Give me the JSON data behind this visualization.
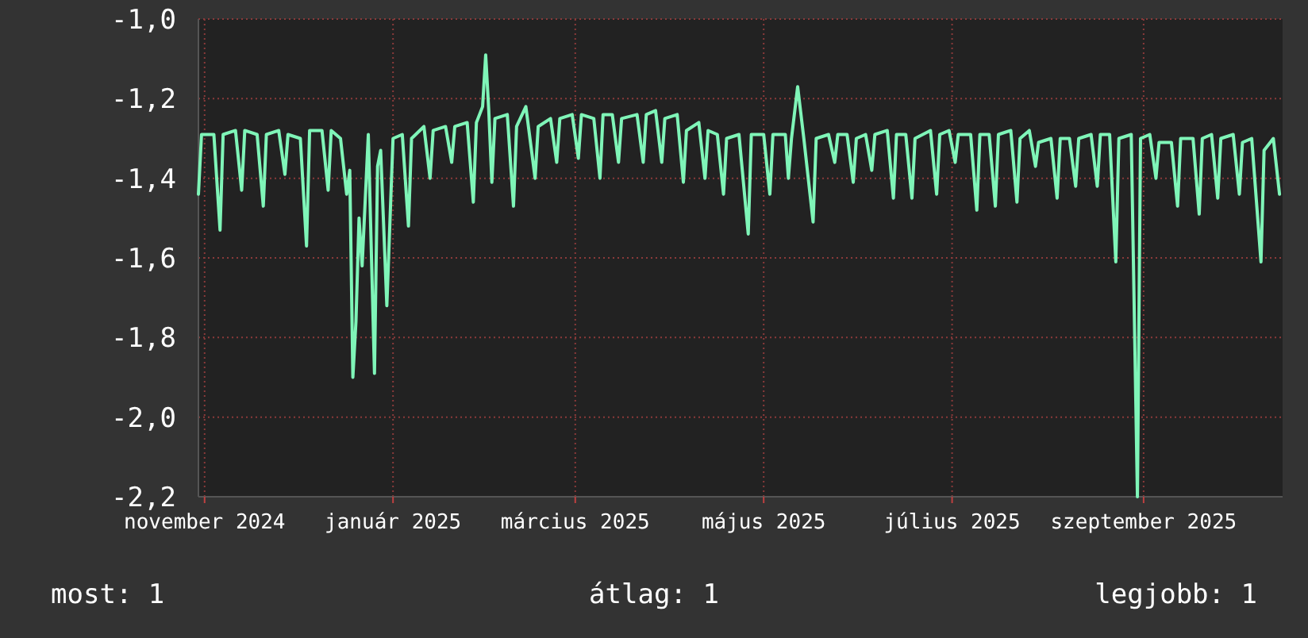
{
  "chart_data": {
    "type": "line",
    "grid": true,
    "xlim": [
      "2024-10-30",
      "2025-10-16"
    ],
    "xticks": [
      {
        "value": "2024-11-01",
        "label": "november 2024"
      },
      {
        "value": "2025-01-01",
        "label": "január 2025"
      },
      {
        "value": "2025-03-01",
        "label": "március 2025"
      },
      {
        "value": "2025-05-01",
        "label": "május 2025"
      },
      {
        "value": "2025-07-01",
        "label": "július 2025"
      },
      {
        "value": "2025-09-01",
        "label": "szeptember 2025"
      }
    ],
    "ylim": [
      -2.2,
      -1.0
    ],
    "yticks": [
      {
        "value": -1.0,
        "label": "-1,0"
      },
      {
        "value": -1.2,
        "label": "-1,2"
      },
      {
        "value": -1.4,
        "label": "-1,4"
      },
      {
        "value": -1.6,
        "label": "-1,6"
      },
      {
        "value": -1.8,
        "label": "-1,8"
      },
      {
        "value": -2.0,
        "label": "-2,0"
      },
      {
        "value": -2.2,
        "label": "-2,2"
      }
    ],
    "annotations": [
      "most: 1",
      "átlag: 1",
      "legjobb: 1"
    ],
    "x": [
      "2024-10-30",
      "2024-10-31",
      "2024-11-04",
      "2024-11-06",
      "2024-11-07",
      "2024-11-11",
      "2024-11-13",
      "2024-11-14",
      "2024-11-18",
      "2024-11-20",
      "2024-11-21",
      "2024-11-25",
      "2024-11-27",
      "2024-11-28",
      "2024-12-02",
      "2024-12-04",
      "2024-12-05",
      "2024-12-09",
      "2024-12-11",
      "2024-12-12",
      "2024-12-15",
      "2024-12-17",
      "2024-12-18",
      "2024-12-19",
      "2024-12-20",
      "2024-12-21",
      "2024-12-22",
      "2024-12-24",
      "2024-12-26",
      "2024-12-27",
      "2024-12-28",
      "2024-12-30",
      "2025-01-01",
      "2025-01-04",
      "2025-01-06",
      "2025-01-07",
      "2025-01-11",
      "2025-01-13",
      "2025-01-14",
      "2025-01-18",
      "2025-01-20",
      "2025-01-21",
      "2025-01-25",
      "2025-01-27",
      "2025-01-28",
      "2025-01-30",
      "2025-01-31",
      "2025-02-01",
      "2025-02-02",
      "2025-02-03",
      "2025-02-07",
      "2025-02-09",
      "2025-02-10",
      "2025-02-13",
      "2025-02-16",
      "2025-02-17",
      "2025-02-21",
      "2025-02-23",
      "2025-02-24",
      "2025-02-28",
      "2025-03-02",
      "2025-03-03",
      "2025-03-07",
      "2025-03-09",
      "2025-03-10",
      "2025-03-13",
      "2025-03-15",
      "2025-03-16",
      "2025-03-21",
      "2025-03-23",
      "2025-03-24",
      "2025-03-27",
      "2025-03-29",
      "2025-03-30",
      "2025-04-03",
      "2025-04-05",
      "2025-04-06",
      "2025-04-10",
      "2025-04-12",
      "2025-04-13",
      "2025-04-16",
      "2025-04-18",
      "2025-04-19",
      "2025-04-23",
      "2025-04-26",
      "2025-04-27",
      "2025-05-01",
      "2025-05-03",
      "2025-05-04",
      "2025-05-08",
      "2025-05-09",
      "2025-05-10",
      "2025-05-12",
      "2025-05-14",
      "2025-05-17",
      "2025-05-18",
      "2025-05-22",
      "2025-05-24",
      "2025-05-25",
      "2025-05-28",
      "2025-05-30",
      "2025-05-31",
      "2025-06-03",
      "2025-06-05",
      "2025-06-06",
      "2025-06-10",
      "2025-06-12",
      "2025-06-13",
      "2025-06-16",
      "2025-06-18",
      "2025-06-19",
      "2025-06-24",
      "2025-06-26",
      "2025-06-27",
      "2025-06-30",
      "2025-07-02",
      "2025-07-03",
      "2025-07-07",
      "2025-07-09",
      "2025-07-10",
      "2025-07-13",
      "2025-07-15",
      "2025-07-16",
      "2025-07-20",
      "2025-07-22",
      "2025-07-23",
      "2025-07-26",
      "2025-07-28",
      "2025-07-29",
      "2025-08-02",
      "2025-08-04",
      "2025-08-05",
      "2025-08-08",
      "2025-08-10",
      "2025-08-11",
      "2025-08-15",
      "2025-08-17",
      "2025-08-18",
      "2025-08-21",
      "2025-08-23",
      "2025-08-24",
      "2025-08-28",
      "2025-08-30",
      "2025-08-31",
      "2025-09-03",
      "2025-09-05",
      "2025-09-06",
      "2025-09-10",
      "2025-09-12",
      "2025-09-13",
      "2025-09-17",
      "2025-09-19",
      "2025-09-20",
      "2025-09-23",
      "2025-09-25",
      "2025-09-26",
      "2025-09-30",
      "2025-10-02",
      "2025-10-03",
      "2025-10-06",
      "2025-10-09",
      "2025-10-10",
      "2025-10-13",
      "2025-10-15"
    ],
    "series": [
      {
        "color": "#7ff5b8",
        "values": [
          -1.44,
          -1.29,
          -1.29,
          -1.53,
          -1.29,
          -1.28,
          -1.43,
          -1.28,
          -1.29,
          -1.47,
          -1.29,
          -1.28,
          -1.39,
          -1.29,
          -1.3,
          -1.57,
          -1.28,
          -1.28,
          -1.43,
          -1.28,
          -1.3,
          -1.44,
          -1.38,
          -1.9,
          -1.76,
          -1.5,
          -1.62,
          -1.29,
          -1.89,
          -1.37,
          -1.33,
          -1.72,
          -1.3,
          -1.29,
          -1.52,
          -1.3,
          -1.27,
          -1.4,
          -1.28,
          -1.27,
          -1.36,
          -1.27,
          -1.26,
          -1.46,
          -1.26,
          -1.22,
          -1.09,
          -1.23,
          -1.41,
          -1.25,
          -1.24,
          -1.47,
          -1.27,
          -1.22,
          -1.4,
          -1.27,
          -1.25,
          -1.36,
          -1.25,
          -1.24,
          -1.35,
          -1.24,
          -1.25,
          -1.4,
          -1.24,
          -1.24,
          -1.36,
          -1.25,
          -1.24,
          -1.36,
          -1.24,
          -1.23,
          -1.36,
          -1.25,
          -1.24,
          -1.41,
          -1.28,
          -1.26,
          -1.4,
          -1.28,
          -1.29,
          -1.44,
          -1.3,
          -1.29,
          -1.54,
          -1.29,
          -1.29,
          -1.44,
          -1.29,
          -1.29,
          -1.4,
          -1.3,
          -1.17,
          -1.3,
          -1.51,
          -1.3,
          -1.29,
          -1.36,
          -1.29,
          -1.29,
          -1.41,
          -1.3,
          -1.29,
          -1.38,
          -1.29,
          -1.28,
          -1.45,
          -1.29,
          -1.29,
          -1.45,
          -1.3,
          -1.28,
          -1.44,
          -1.29,
          -1.28,
          -1.36,
          -1.29,
          -1.29,
          -1.48,
          -1.29,
          -1.29,
          -1.47,
          -1.29,
          -1.28,
          -1.46,
          -1.3,
          -1.28,
          -1.37,
          -1.31,
          -1.3,
          -1.45,
          -1.3,
          -1.3,
          -1.42,
          -1.3,
          -1.29,
          -1.42,
          -1.29,
          -1.29,
          -1.61,
          -1.3,
          -1.29,
          -2.2,
          -1.3,
          -1.29,
          -1.4,
          -1.31,
          -1.31,
          -1.47,
          -1.3,
          -1.3,
          -1.49,
          -1.3,
          -1.29,
          -1.45,
          -1.3,
          -1.29,
          -1.44,
          -1.31,
          -1.3,
          -1.61,
          -1.33,
          -1.3,
          -1.44
        ]
      }
    ]
  }
}
